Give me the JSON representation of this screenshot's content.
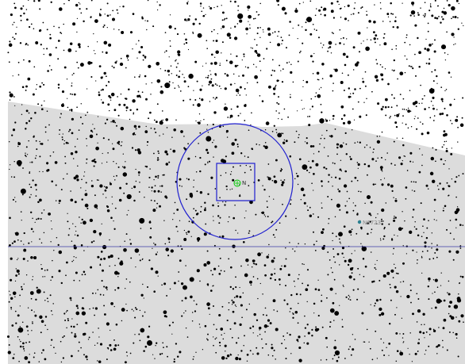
{
  "sky_view": {
    "colors": {
      "background": "#ffffff",
      "region_fill": "#dcdcdc",
      "circle_stroke": "#1f1fcf",
      "box_stroke": "#1f1fcf",
      "horizon_line": "#3a3aa8",
      "target_marker": "#00cc00",
      "object_marker": "#2a7f8f",
      "stars": "#000000"
    },
    "target": {
      "label": "N"
    },
    "nearby_object": {
      "label": "N6723"
    },
    "icons": [
      "target-marker-icon",
      "object-marker-icon"
    ]
  }
}
